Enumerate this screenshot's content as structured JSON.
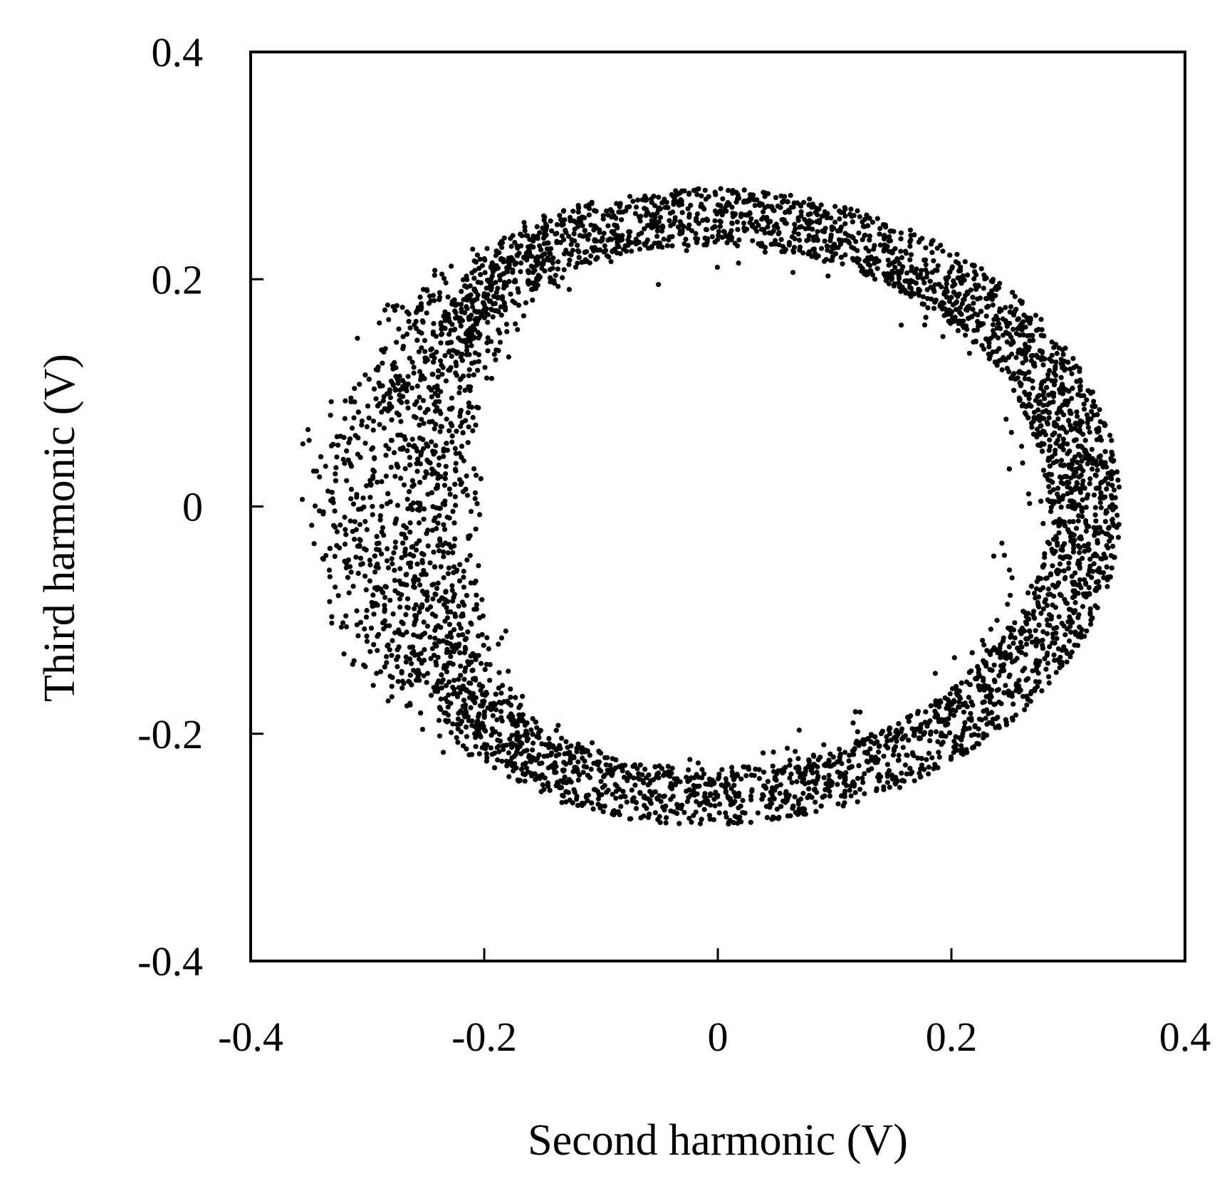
{
  "chart_data": {
    "type": "scatter",
    "title": "",
    "xlabel": "Second harmonic (V)",
    "ylabel": "Third harmonic (V)",
    "xlim": [
      -0.4,
      0.4
    ],
    "ylim": [
      -0.4,
      0.4
    ],
    "xticks": [
      -0.4,
      -0.2,
      0,
      0.2,
      0.4
    ],
    "yticks": [
      -0.4,
      -0.2,
      0,
      0.2,
      0.4
    ],
    "xtick_labels": [
      "-0.4",
      "-0.2",
      "0",
      "0.2",
      "0.4"
    ],
    "ytick_labels": [
      "-0.4",
      "-0.2",
      "0",
      "0.2",
      "0.4"
    ],
    "grid": false,
    "legend": "none",
    "marker_color": "#000000",
    "series": [
      {
        "shape": "ring of dense points (elliptical orbit)",
        "center": [
          -0.01,
          0.0
        ],
        "outer_semi_axis_x": 0.355,
        "outer_semi_axis_y": 0.28,
        "ring_thickness": 0.05,
        "extent_x": [
          -0.365,
          0.345
        ],
        "extent_y": [
          -0.275,
          0.28
        ]
      }
    ]
  }
}
